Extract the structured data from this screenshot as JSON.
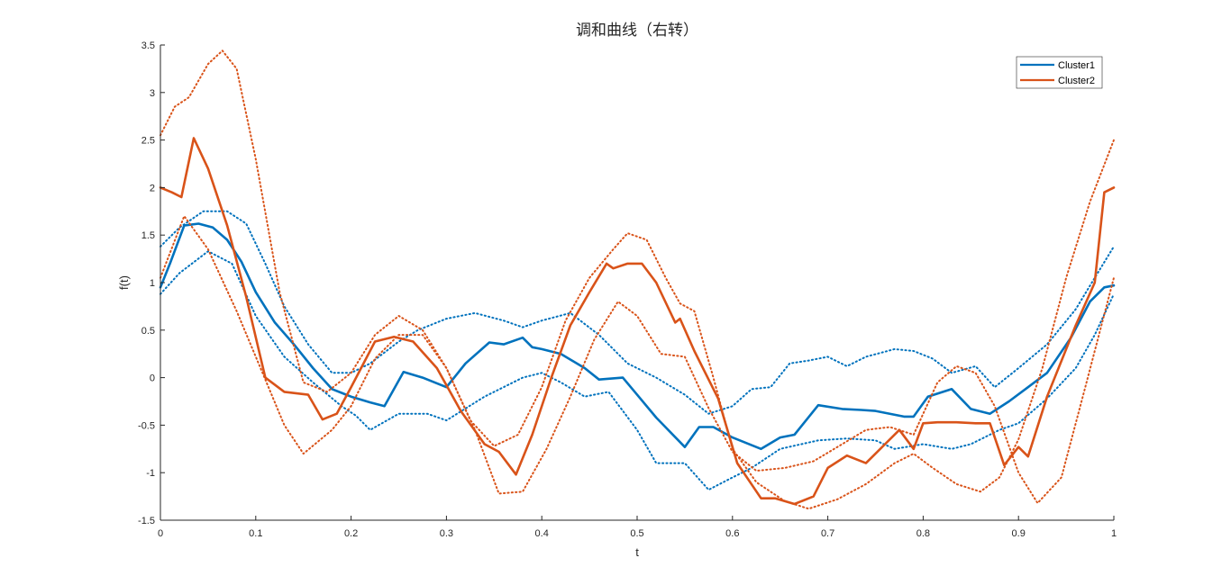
{
  "chart_data": {
    "type": "line",
    "title": "调和曲线（右转）",
    "xlabel": "t",
    "ylabel": "f(t)",
    "xlim": [
      0,
      1
    ],
    "ylim": [
      -1.5,
      3.5
    ],
    "xticks": [
      "0",
      "0.1",
      "0.2",
      "0.3",
      "0.4",
      "0.5",
      "0.6",
      "0.7",
      "0.8",
      "0.9",
      "1"
    ],
    "yticks": [
      "-1.5",
      "-1",
      "-0.5",
      "0",
      "0.5",
      "1",
      "1.5",
      "2",
      "2.5",
      "3",
      "3.5"
    ],
    "xtick_values": [
      0,
      0.1,
      0.2,
      0.3,
      0.4,
      0.5,
      0.6,
      0.7,
      0.8,
      0.9,
      1
    ],
    "ytick_values": [
      -1.5,
      -1,
      -0.5,
      0,
      0.5,
      1,
      1.5,
      2,
      2.5,
      3,
      3.5
    ],
    "grid": false,
    "legend_position": "top-right",
    "colors": {
      "cluster1": "#0072BD",
      "cluster2": "#D95319"
    },
    "legend": [
      {
        "label": "Cluster1",
        "color": "#0072BD"
      },
      {
        "label": "Cluster2",
        "color": "#D95319"
      }
    ],
    "series": [
      {
        "name": "Cluster1",
        "style": "solid",
        "color": "#0072BD",
        "x": [
          0,
          0.01,
          0.025,
          0.04,
          0.055,
          0.07,
          0.085,
          0.1,
          0.12,
          0.14,
          0.16,
          0.18,
          0.2,
          0.22,
          0.235,
          0.255,
          0.275,
          0.3,
          0.32,
          0.345,
          0.36,
          0.38,
          0.39,
          0.4,
          0.42,
          0.445,
          0.46,
          0.485,
          0.5,
          0.52,
          0.55,
          0.565,
          0.58,
          0.6,
          0.63,
          0.65,
          0.665,
          0.69,
          0.715,
          0.735,
          0.75,
          0.78,
          0.79,
          0.805,
          0.83,
          0.85,
          0.87,
          0.89,
          0.91,
          0.93,
          0.955,
          0.975,
          0.99,
          1
        ],
        "y": [
          0.95,
          1.2,
          1.6,
          1.62,
          1.58,
          1.45,
          1.22,
          0.9,
          0.58,
          0.35,
          0.1,
          -0.12,
          -0.2,
          -0.26,
          -0.3,
          0.06,
          0.0,
          -0.1,
          0.15,
          0.37,
          0.35,
          0.42,
          0.32,
          0.3,
          0.25,
          0.1,
          -0.02,
          0.0,
          -0.18,
          -0.42,
          -0.73,
          -0.52,
          -0.52,
          -0.63,
          -0.75,
          -0.63,
          -0.6,
          -0.29,
          -0.33,
          -0.34,
          -0.35,
          -0.41,
          -0.41,
          -0.2,
          -0.12,
          -0.33,
          -0.38,
          -0.25,
          -0.1,
          0.05,
          0.42,
          0.8,
          0.95,
          0.97
        ]
      },
      {
        "name": "",
        "style": "dotted",
        "color": "#0072BD",
        "x": [
          0,
          0.02,
          0.045,
          0.07,
          0.09,
          0.11,
          0.13,
          0.155,
          0.18,
          0.2,
          0.22,
          0.25,
          0.27,
          0.3,
          0.33,
          0.36,
          0.38,
          0.4,
          0.43,
          0.46,
          0.49,
          0.52,
          0.55,
          0.575,
          0.6,
          0.62,
          0.64,
          0.66,
          0.68,
          0.7,
          0.72,
          0.74,
          0.77,
          0.79,
          0.81,
          0.83,
          0.855,
          0.875,
          0.9,
          0.93,
          0.96,
          0.98,
          1
        ],
        "y": [
          1.38,
          1.58,
          1.75,
          1.75,
          1.62,
          1.2,
          0.75,
          0.35,
          0.05,
          0.05,
          0.15,
          0.38,
          0.5,
          0.62,
          0.68,
          0.6,
          0.53,
          0.6,
          0.68,
          0.45,
          0.15,
          0.0,
          -0.18,
          -0.38,
          -0.3,
          -0.12,
          -0.1,
          0.15,
          0.18,
          0.22,
          0.12,
          0.22,
          0.3,
          0.28,
          0.2,
          0.05,
          0.12,
          -0.1,
          0.1,
          0.35,
          0.72,
          1.05,
          1.38
        ]
      },
      {
        "name": "",
        "style": "dotted",
        "color": "#0072BD",
        "x": [
          0,
          0.02,
          0.05,
          0.075,
          0.1,
          0.13,
          0.16,
          0.19,
          0.205,
          0.22,
          0.25,
          0.28,
          0.3,
          0.34,
          0.38,
          0.4,
          0.42,
          0.445,
          0.47,
          0.5,
          0.52,
          0.55,
          0.575,
          0.6,
          0.62,
          0.65,
          0.69,
          0.72,
          0.75,
          0.77,
          0.8,
          0.83,
          0.85,
          0.88,
          0.9,
          0.93,
          0.96,
          0.98,
          1
        ],
        "y": [
          0.88,
          1.1,
          1.33,
          1.2,
          0.65,
          0.22,
          -0.05,
          -0.3,
          -0.4,
          -0.55,
          -0.38,
          -0.38,
          -0.45,
          -0.2,
          0.0,
          0.05,
          -0.05,
          -0.2,
          -0.15,
          -0.55,
          -0.9,
          -0.9,
          -1.18,
          -1.05,
          -0.95,
          -0.75,
          -0.66,
          -0.64,
          -0.66,
          -0.75,
          -0.7,
          -0.75,
          -0.7,
          -0.55,
          -0.48,
          -0.22,
          0.1,
          0.45,
          0.88
        ]
      },
      {
        "name": "Cluster2",
        "style": "solid",
        "color": "#D95319",
        "x": [
          0,
          0.012,
          0.022,
          0.035,
          0.05,
          0.07,
          0.09,
          0.11,
          0.13,
          0.155,
          0.17,
          0.185,
          0.2,
          0.225,
          0.245,
          0.265,
          0.29,
          0.315,
          0.34,
          0.355,
          0.373,
          0.39,
          0.41,
          0.43,
          0.45,
          0.468,
          0.475,
          0.49,
          0.505,
          0.52,
          0.54,
          0.545,
          0.56,
          0.585,
          0.605,
          0.63,
          0.645,
          0.665,
          0.685,
          0.7,
          0.72,
          0.74,
          0.76,
          0.775,
          0.79,
          0.8,
          0.815,
          0.835,
          0.855,
          0.87,
          0.885,
          0.9,
          0.91,
          0.93,
          0.96,
          0.98,
          0.99,
          1
        ],
        "y": [
          2.0,
          1.95,
          1.9,
          2.52,
          2.2,
          1.6,
          0.85,
          0.0,
          -0.15,
          -0.18,
          -0.44,
          -0.38,
          -0.1,
          0.38,
          0.43,
          0.38,
          0.1,
          -0.35,
          -0.7,
          -0.78,
          -1.02,
          -0.6,
          0.0,
          0.55,
          0.9,
          1.2,
          1.15,
          1.2,
          1.2,
          1.0,
          0.58,
          0.62,
          0.28,
          -0.22,
          -0.9,
          -1.27,
          -1.27,
          -1.33,
          -1.25,
          -0.95,
          -0.82,
          -0.9,
          -0.7,
          -0.55,
          -0.75,
          -0.48,
          -0.47,
          -0.47,
          -0.48,
          -0.48,
          -0.92,
          -0.73,
          -0.83,
          -0.2,
          0.55,
          1.0,
          1.95,
          2.0
        ]
      },
      {
        "name": "",
        "style": "dotted",
        "color": "#D95319",
        "x": [
          0,
          0.015,
          0.03,
          0.05,
          0.065,
          0.08,
          0.1,
          0.125,
          0.15,
          0.175,
          0.2,
          0.225,
          0.25,
          0.275,
          0.3,
          0.325,
          0.35,
          0.375,
          0.4,
          0.425,
          0.45,
          0.475,
          0.49,
          0.51,
          0.53,
          0.545,
          0.56,
          0.58,
          0.6,
          0.625,
          0.655,
          0.68,
          0.71,
          0.74,
          0.77,
          0.79,
          0.81,
          0.835,
          0.86,
          0.88,
          0.9,
          0.925,
          0.95,
          0.975,
          1
        ],
        "y": [
          2.55,
          2.85,
          2.95,
          3.3,
          3.44,
          3.25,
          2.3,
          0.9,
          -0.05,
          -0.15,
          0.05,
          0.45,
          0.65,
          0.5,
          0.1,
          -0.45,
          -0.72,
          -0.6,
          -0.1,
          0.6,
          1.05,
          1.35,
          1.52,
          1.45,
          1.05,
          0.78,
          0.7,
          0.0,
          -0.75,
          -1.1,
          -1.3,
          -1.38,
          -1.28,
          -1.12,
          -0.9,
          -0.8,
          -0.95,
          -1.12,
          -1.2,
          -1.05,
          -0.65,
          0.1,
          1.05,
          1.85,
          2.5
        ]
      },
      {
        "name": "",
        "style": "dotted",
        "color": "#D95319",
        "x": [
          0,
          0.025,
          0.05,
          0.08,
          0.105,
          0.13,
          0.15,
          0.18,
          0.2,
          0.225,
          0.25,
          0.275,
          0.3,
          0.33,
          0.355,
          0.38,
          0.405,
          0.43,
          0.455,
          0.48,
          0.5,
          0.525,
          0.55,
          0.575,
          0.6,
          0.625,
          0.655,
          0.685,
          0.715,
          0.74,
          0.765,
          0.79,
          0.815,
          0.835,
          0.855,
          0.875,
          0.9,
          0.92,
          0.945,
          0.97,
          1
        ],
        "y": [
          1.05,
          1.7,
          1.35,
          0.7,
          0.1,
          -0.5,
          -0.8,
          -0.55,
          -0.3,
          0.2,
          0.45,
          0.45,
          0.1,
          -0.55,
          -1.22,
          -1.2,
          -0.75,
          -0.2,
          0.4,
          0.8,
          0.65,
          0.25,
          0.22,
          -0.32,
          -0.78,
          -0.98,
          -0.95,
          -0.88,
          -0.7,
          -0.55,
          -0.52,
          -0.6,
          -0.05,
          0.12,
          0.05,
          -0.3,
          -1.0,
          -1.32,
          -1.05,
          -0.1,
          1.05
        ]
      }
    ]
  }
}
